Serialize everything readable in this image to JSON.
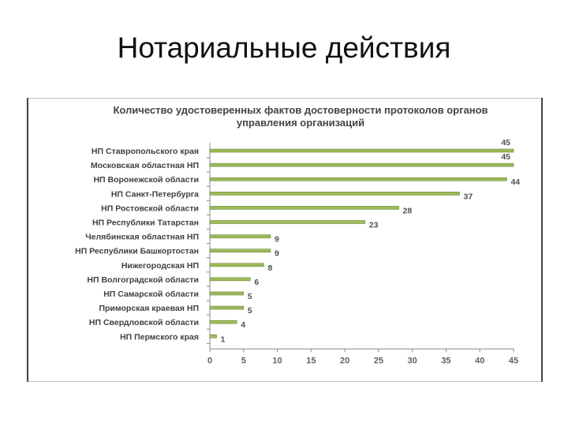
{
  "slide": {
    "title": "Нотариальные действия"
  },
  "chart_data": {
    "type": "bar",
    "orientation": "horizontal",
    "title": "Количество удостоверенных фактов достоверности протоколов органов управления организаций",
    "categories": [
      "НП Ставропольского края",
      "Московская областная НП",
      "НП Воронежской области",
      "НП Санкт-Петербурга",
      "НП Ростовской области",
      "НП Республики Татарстан",
      "Челябинская областная НП",
      "НП Республики Башкортостан",
      "Нижегородская НП",
      "НП Волгоградской области",
      "НП Самарской области",
      "Приморская краевая НП",
      "НП Свердловской области",
      "НП Пермского края"
    ],
    "values": [
      45,
      45,
      44,
      37,
      28,
      23,
      9,
      9,
      8,
      6,
      5,
      5,
      4,
      1
    ],
    "xlim": [
      0,
      45
    ],
    "xticks": [
      0,
      5,
      10,
      15,
      20,
      25,
      30,
      35,
      40,
      45
    ],
    "grid": false,
    "legend": "none",
    "colors": {
      "bar_fill": "#9bbb59",
      "bar_stroke": "#71893f",
      "label_text": "#404040",
      "axis": "#888888"
    }
  }
}
